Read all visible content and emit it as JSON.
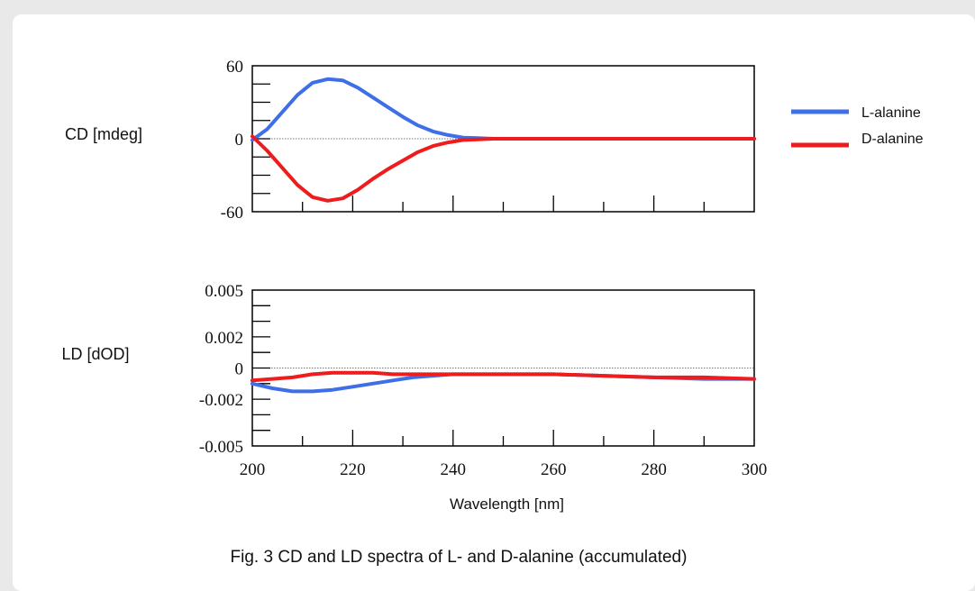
{
  "caption": "Fig. 3  CD and LD spectra of L- and D-alanine (accumulated)",
  "chart_data": [
    {
      "type": "line",
      "ylabel": "CD [mdeg]",
      "xlim": [
        200,
        300
      ],
      "ylim": [
        -60,
        60
      ],
      "y_ticks": [
        {
          "value": 60,
          "label": "60"
        },
        {
          "value": 0,
          "label": "0"
        },
        {
          "value": -60,
          "label": "-60"
        }
      ],
      "zero_line": true,
      "series": [
        {
          "name": "L-alanine",
          "color": "#3f6fe8",
          "x": [
            200,
            203,
            206,
            209,
            212,
            215,
            218,
            221,
            224,
            227,
            230,
            233,
            236,
            239,
            242,
            245,
            248,
            251,
            260,
            270,
            280,
            290,
            300
          ],
          "y": [
            -1,
            8,
            22,
            36,
            46,
            49,
            48,
            42,
            34,
            26,
            18,
            11,
            6,
            3,
            1,
            0.5,
            0,
            0,
            0,
            0,
            0,
            0,
            0
          ]
        },
        {
          "name": "D-alanine",
          "color": "#ee1c1c",
          "x": [
            200,
            203,
            206,
            209,
            212,
            215,
            218,
            221,
            224,
            227,
            230,
            233,
            236,
            239,
            242,
            245,
            248,
            251,
            260,
            270,
            280,
            290,
            300
          ],
          "y": [
            2,
            -10,
            -24,
            -38,
            -48,
            -51,
            -49,
            -42,
            -33,
            -25,
            -18,
            -11,
            -6,
            -3,
            -1,
            -0.5,
            0,
            0,
            0,
            0,
            0,
            0,
            0
          ]
        }
      ]
    },
    {
      "type": "line",
      "ylabel": "LD [dOD]",
      "xlabel": "Wavelength [nm]",
      "xlim": [
        200,
        300
      ],
      "ylim": [
        -0.005,
        0.005
      ],
      "x_ticks": [
        200,
        220,
        240,
        260,
        280,
        300
      ],
      "y_ticks": [
        {
          "value": 0.005,
          "label": "0.005"
        },
        {
          "value": 0.002,
          "label": "0.002"
        },
        {
          "value": 0,
          "label": "0"
        },
        {
          "value": -0.002,
          "label": "-0.002"
        },
        {
          "value": -0.005,
          "label": "-0.005"
        }
      ],
      "zero_line": true,
      "series": [
        {
          "name": "L-alanine",
          "color": "#3f6fe8",
          "x": [
            200,
            204,
            208,
            212,
            216,
            220,
            224,
            228,
            232,
            236,
            240,
            245,
            250,
            260,
            270,
            280,
            290,
            300
          ],
          "y": [
            -0.001,
            -0.0013,
            -0.0015,
            -0.0015,
            -0.0014,
            -0.0012,
            -0.001,
            -0.0008,
            -0.0006,
            -0.0005,
            -0.0004,
            -0.0004,
            -0.0004,
            -0.0004,
            -0.0005,
            -0.0006,
            -0.0007,
            -0.0007
          ]
        },
        {
          "name": "D-alanine",
          "color": "#ee1c1c",
          "x": [
            200,
            204,
            208,
            212,
            216,
            220,
            224,
            228,
            232,
            236,
            240,
            245,
            250,
            260,
            270,
            280,
            290,
            300
          ],
          "y": [
            -0.0008,
            -0.0007,
            -0.0006,
            -0.0004,
            -0.0003,
            -0.0003,
            -0.0003,
            -0.0004,
            -0.0004,
            -0.0004,
            -0.0004,
            -0.0004,
            -0.0004,
            -0.0004,
            -0.0005,
            -0.0006,
            -0.0006,
            -0.0007
          ]
        }
      ]
    }
  ]
}
